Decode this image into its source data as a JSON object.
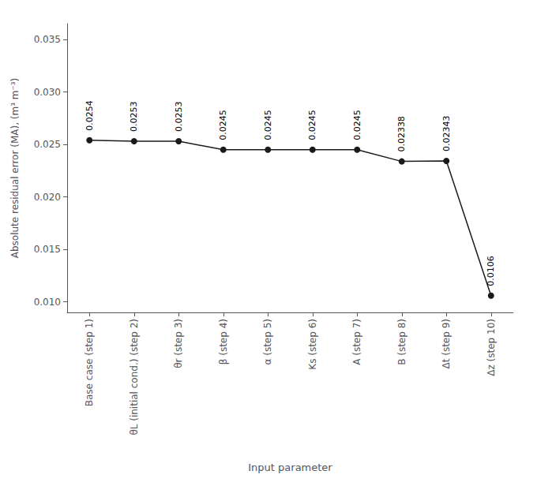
{
  "chart_data": {
    "type": "line",
    "categories": [
      "Base case (step 1)",
      "θL (initial cond.) (step 2)",
      "θr (step 3)",
      "β (step 4)",
      "α (step 5)",
      "Ks (step 6)",
      "A (step 7)",
      "B (step 8)",
      "Δt (step 9)",
      "Δz (step 10)"
    ],
    "values": [
      0.0254,
      0.0253,
      0.0253,
      0.0245,
      0.0245,
      0.0245,
      0.0245,
      0.02338,
      0.02343,
      0.0106
    ],
    "data_labels": true,
    "x_label": "Input parameter",
    "y_label": "Absolute residual error (MA), (m³ m⁻³)",
    "ylim": [
      0.009,
      0.0365
    ],
    "yticks": [
      {
        "value": 0.01,
        "label": "0.010"
      },
      0.015,
      {
        "value": 0.02,
        "label": "0.020"
      },
      0.025,
      {
        "value": 0.03,
        "label": "0.030"
      },
      0.035
    ],
    "color": "#1a1a1a",
    "marker": "circle",
    "grid": false
  }
}
